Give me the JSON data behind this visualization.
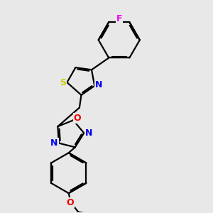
{
  "bg_color": "#e8e8e8",
  "bond_color": "#000000",
  "bond_width": 1.6,
  "dbo": 0.06,
  "atom_colors": {
    "S": "#cccc00",
    "N": "#0000ee",
    "O": "#ee0000",
    "F": "#ee00ee"
  }
}
